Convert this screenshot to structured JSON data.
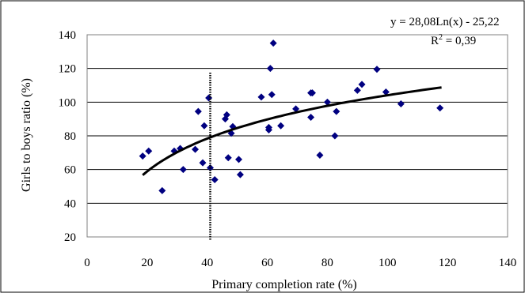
{
  "chart_data": {
    "type": "scatter",
    "xlabel": "Primary completion rate (%)",
    "ylabel": "Girls to boys ratio (%)",
    "xlim": [
      0,
      140
    ],
    "ylim": [
      20,
      140
    ],
    "x_ticks": [
      "0",
      "20",
      "40",
      "60",
      "80",
      "100",
      "120",
      "140"
    ],
    "y_ticks": [
      "20",
      "40",
      "60",
      "80",
      "100",
      "120",
      "140"
    ],
    "grid": "horizontal",
    "marker_color": "#000080",
    "series": [
      {
        "points": [
          [
            18.5,
            68
          ],
          [
            20.5,
            71
          ],
          [
            25,
            47.5
          ],
          [
            29,
            71
          ],
          [
            31,
            72.5
          ],
          [
            32,
            60
          ],
          [
            36,
            72
          ],
          [
            37,
            94.5
          ],
          [
            38.5,
            64
          ],
          [
            39,
            86
          ],
          [
            40.5,
            102.5
          ],
          [
            41,
            61
          ],
          [
            42.5,
            54
          ],
          [
            46,
            90
          ],
          [
            46.5,
            92.5
          ],
          [
            47,
            67
          ],
          [
            48,
            81.5
          ],
          [
            48.5,
            85.5
          ],
          [
            50.5,
            66
          ],
          [
            51,
            57
          ],
          [
            58,
            103
          ],
          [
            60.5,
            85
          ],
          [
            60.5,
            83.5
          ],
          [
            61,
            120
          ],
          [
            61.5,
            104.5
          ],
          [
            62,
            135
          ],
          [
            64.5,
            86
          ],
          [
            69.5,
            96
          ],
          [
            74.5,
            91
          ],
          [
            74.5,
            105.5
          ],
          [
            75,
            105.5
          ],
          [
            77.5,
            68.5
          ],
          [
            80,
            100
          ],
          [
            82.5,
            80
          ],
          [
            83,
            94.5
          ],
          [
            90,
            107
          ],
          [
            91.5,
            110.5
          ],
          [
            96.5,
            119.5
          ],
          [
            99.5,
            106
          ],
          [
            104.5,
            99
          ],
          [
            117.5,
            96.5
          ]
        ]
      }
    ],
    "trendline": {
      "type": "logarithmic",
      "a": 28.08,
      "b": -25.22,
      "x_range": [
        18.5,
        118
      ],
      "equation_label": "y = 28,08Ln(x) - 25,22",
      "r2_label": "R",
      "r2_sup": "2",
      "r2_value": " = 0,39"
    },
    "vertical_line": {
      "x": 41,
      "style": "dashed"
    }
  }
}
